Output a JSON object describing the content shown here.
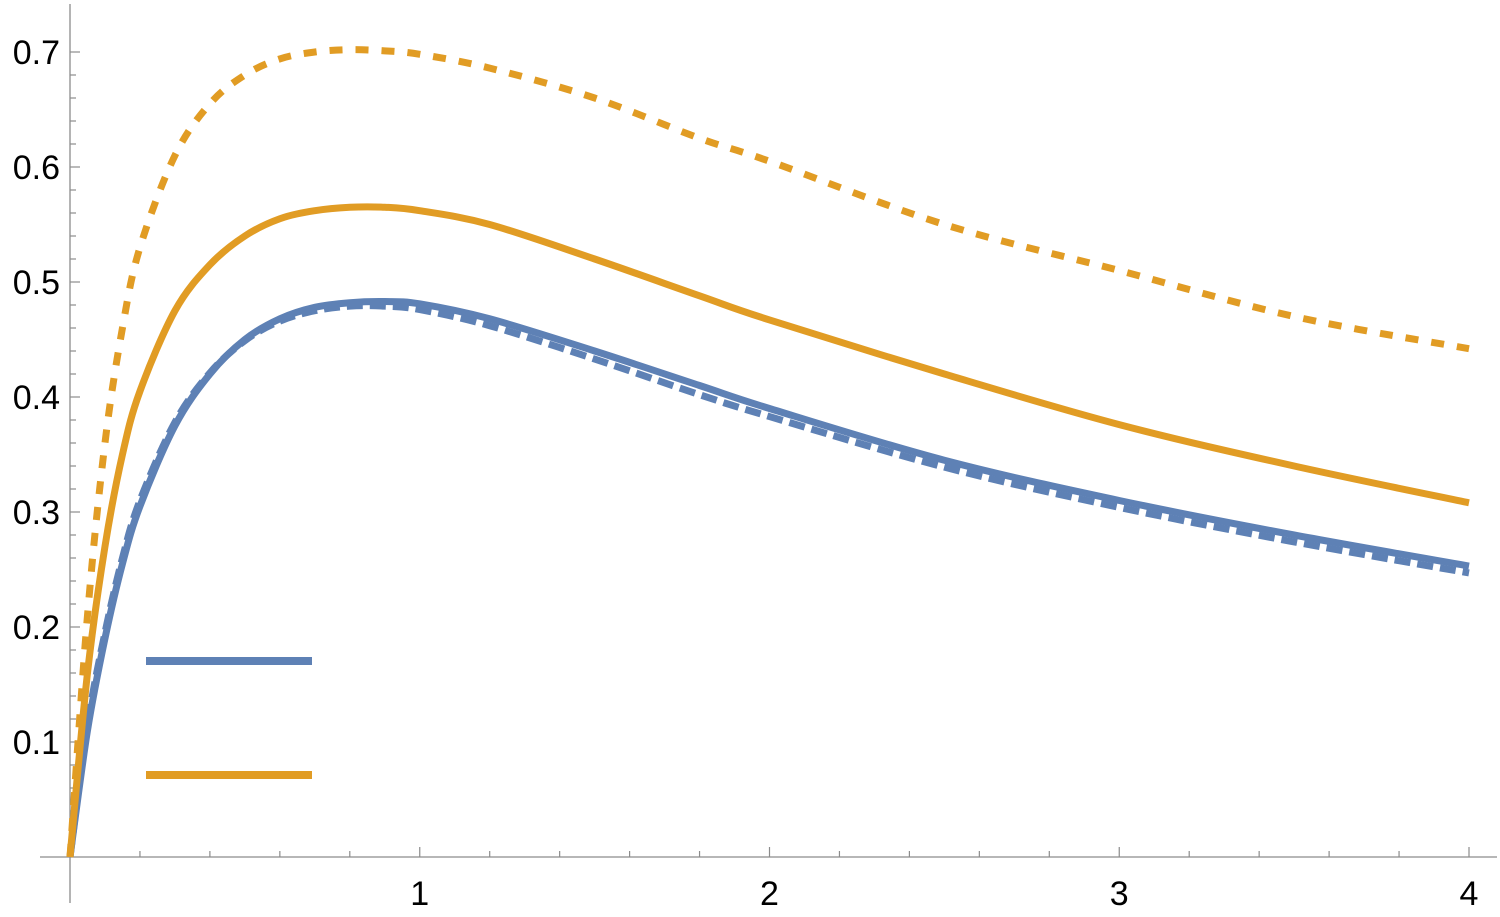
{
  "chart_data": {
    "type": "line",
    "title": "",
    "xlabel": "",
    "ylabel": "",
    "xlim": [
      0,
      4.08
    ],
    "ylim": [
      0,
      0.74
    ],
    "grid": false,
    "legend": "bottom-left",
    "x_ticks": [
      "1",
      "2",
      "3",
      "4"
    ],
    "y_ticks": [
      "0.1",
      "0.2",
      "0.3",
      "0.4",
      "0.5",
      "0.6",
      "0.7"
    ],
    "x_tick_values": [
      1,
      2,
      3,
      4
    ],
    "y_tick_values": [
      0.1,
      0.2,
      0.3,
      0.4,
      0.5,
      0.6,
      0.7
    ],
    "colors": {
      "blue": "#5e81b5",
      "orange": "#e19c24"
    },
    "series": [
      {
        "color": "#5e81b5",
        "style": "solid",
        "x": [
          0,
          0.05,
          0.1,
          0.15,
          0.2,
          0.3,
          0.4,
          0.5,
          0.6,
          0.7,
          0.8,
          0.9,
          1.0,
          1.2,
          1.5,
          1.8,
          2.0,
          2.5,
          3.0,
          3.5,
          4.0
        ],
        "y": [
          0,
          0.11,
          0.19,
          0.255,
          0.305,
          0.375,
          0.42,
          0.45,
          0.468,
          0.478,
          0.482,
          0.483,
          0.481,
          0.468,
          0.44,
          0.41,
          0.39,
          0.345,
          0.31,
          0.28,
          0.253
        ]
      },
      {
        "color": "#5e81b5",
        "style": "dashed",
        "x": [
          0,
          0.05,
          0.1,
          0.15,
          0.2,
          0.3,
          0.4,
          0.5,
          0.6,
          0.7,
          0.8,
          0.9,
          1.0,
          1.2,
          1.5,
          1.8,
          2.0,
          2.5,
          3.0,
          3.5,
          4.0
        ],
        "y": [
          0,
          0.115,
          0.195,
          0.26,
          0.31,
          0.378,
          0.421,
          0.449,
          0.466,
          0.475,
          0.479,
          0.479,
          0.476,
          0.462,
          0.433,
          0.402,
          0.383,
          0.339,
          0.304,
          0.274,
          0.247
        ]
      },
      {
        "color": "#e19c24",
        "style": "solid",
        "x": [
          0,
          0.05,
          0.1,
          0.15,
          0.2,
          0.3,
          0.4,
          0.5,
          0.6,
          0.7,
          0.8,
          0.9,
          1.0,
          1.2,
          1.5,
          1.8,
          2.0,
          2.5,
          3.0,
          3.5,
          4.0
        ],
        "y": [
          0,
          0.16,
          0.27,
          0.35,
          0.405,
          0.475,
          0.515,
          0.54,
          0.555,
          0.562,
          0.565,
          0.565,
          0.562,
          0.55,
          0.52,
          0.488,
          0.467,
          0.42,
          0.376,
          0.34,
          0.308
        ]
      },
      {
        "color": "#e19c24",
        "style": "dotted",
        "x": [
          0,
          0.05,
          0.1,
          0.15,
          0.2,
          0.3,
          0.4,
          0.5,
          0.6,
          0.7,
          0.8,
          0.9,
          1.0,
          1.2,
          1.5,
          1.8,
          2.0,
          2.5,
          3.0,
          3.5,
          4.0
        ],
        "y": [
          0,
          0.21,
          0.36,
          0.46,
          0.53,
          0.61,
          0.655,
          0.68,
          0.694,
          0.7,
          0.702,
          0.701,
          0.698,
          0.686,
          0.66,
          0.625,
          0.605,
          0.55,
          0.51,
          0.47,
          0.442
        ]
      }
    ],
    "legend_entries": [
      {
        "color": "#5e81b5",
        "style": "solid"
      },
      {
        "color": "#e19c24",
        "style": "solid"
      }
    ]
  }
}
